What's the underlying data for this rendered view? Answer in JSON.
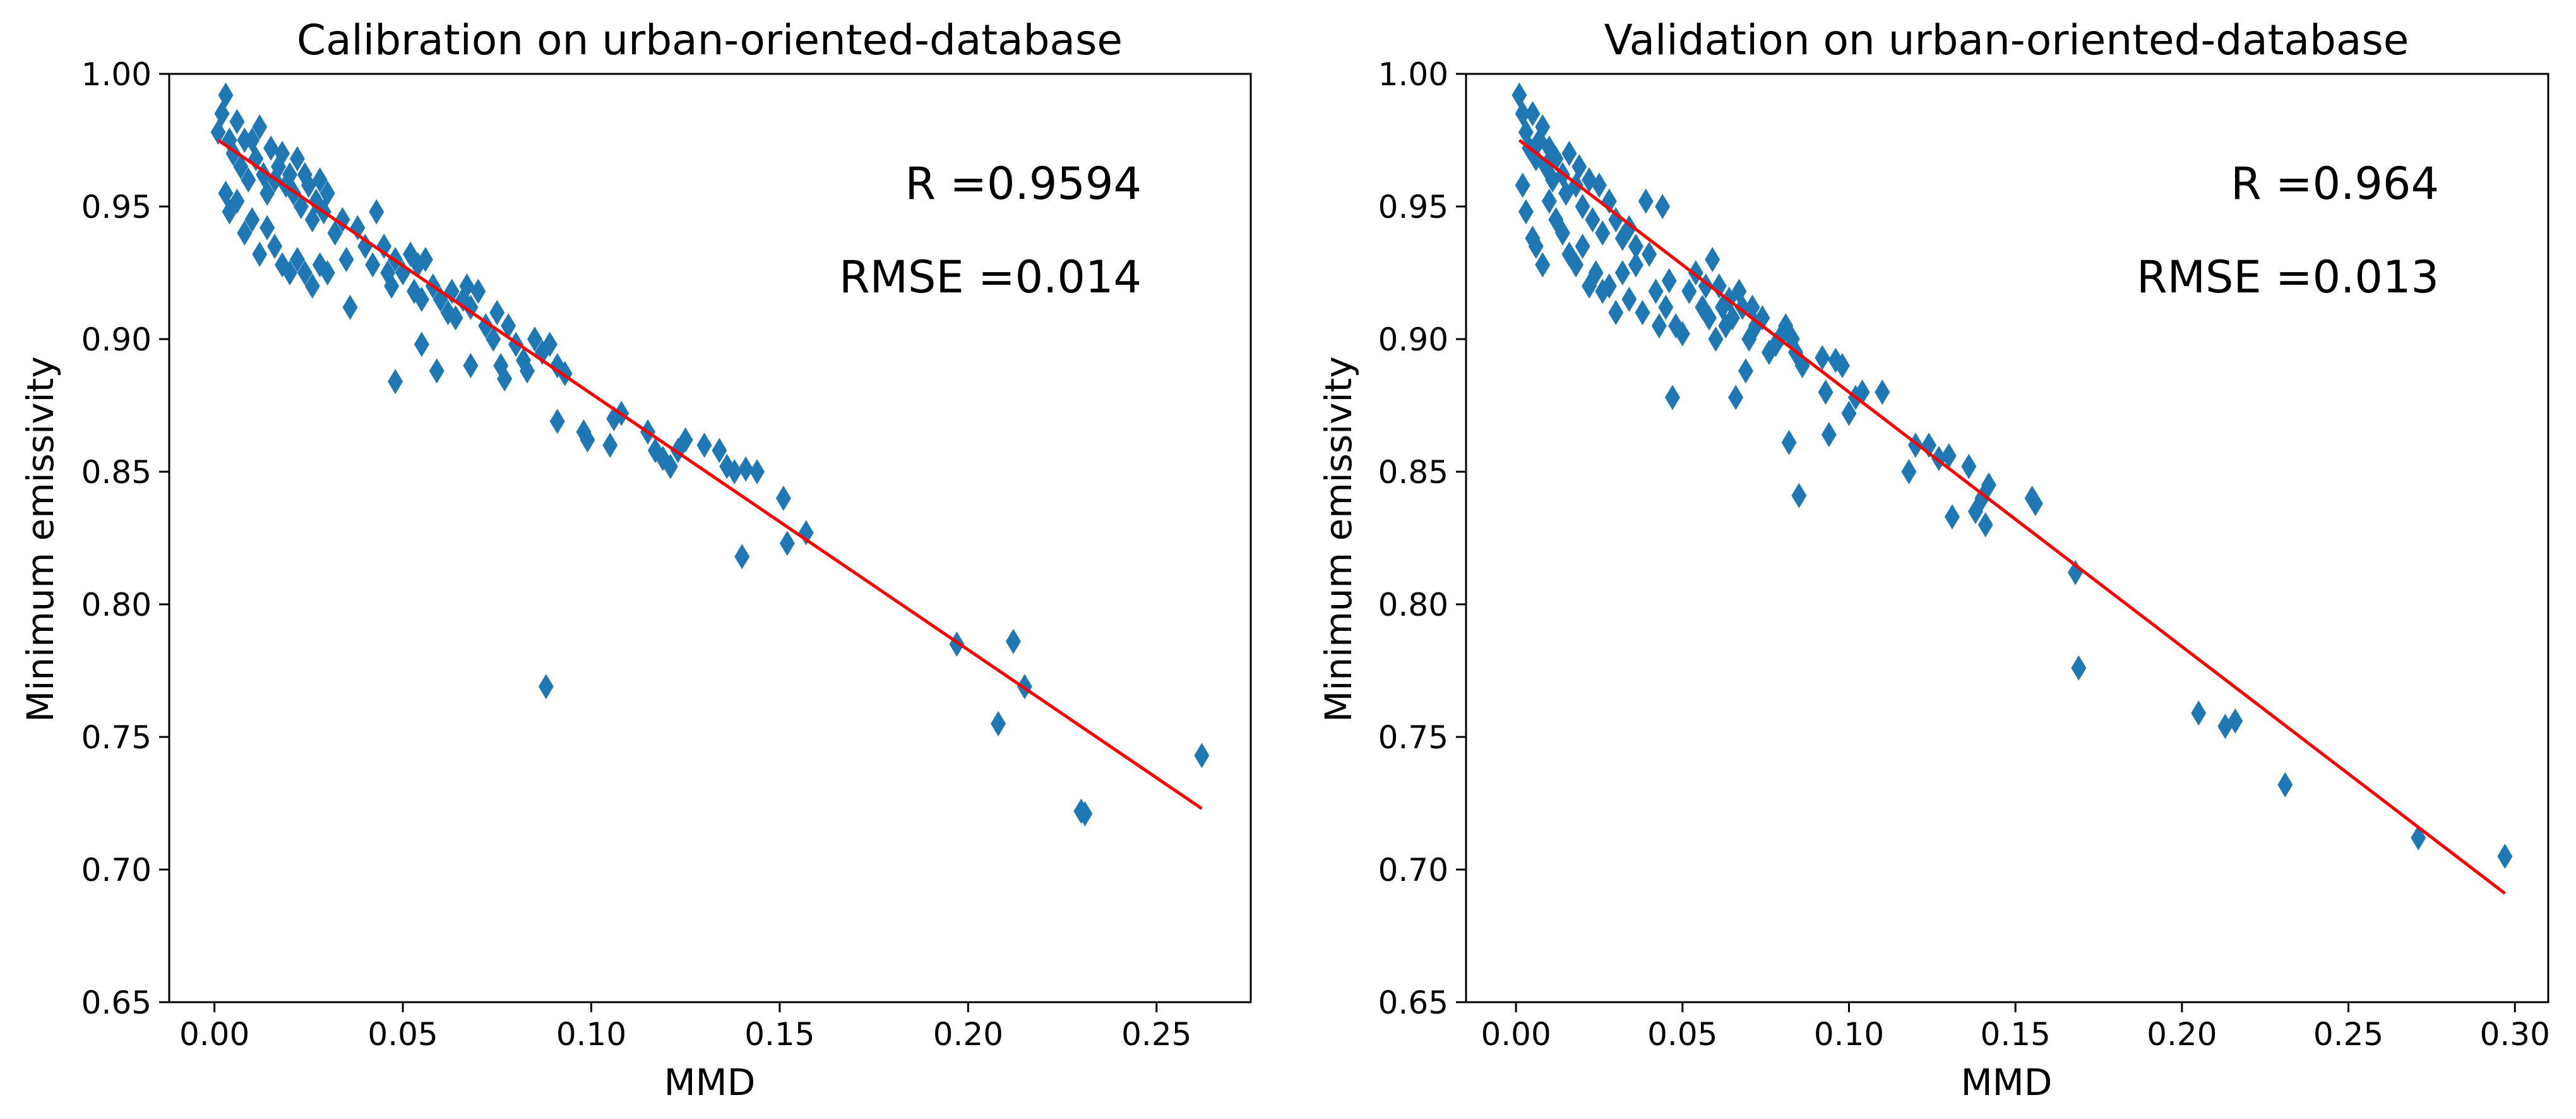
{
  "colors": {
    "marker": "#1f77b4",
    "fit_line": "#ff0000",
    "axes": "#000000",
    "background": "#ffffff"
  },
  "chart_data": [
    {
      "type": "scatter",
      "marker": "thin_diamond",
      "title": "Calibration on urban-oriented-database",
      "xlabel": "MMD",
      "ylabel": "Minimum emissivity",
      "xlim": [
        -0.012,
        0.275
      ],
      "ylim": [
        0.65,
        1.0
      ],
      "xticks": [
        "0.00",
        "0.05",
        "0.10",
        "0.15",
        "0.20",
        "0.25"
      ],
      "yticks": [
        "0.65",
        "0.70",
        "0.75",
        "0.80",
        "0.85",
        "0.90",
        "0.95",
        "1.00"
      ],
      "grid": false,
      "legend": "none",
      "annotations": [
        "R =0.9594",
        "RMSE =0.014"
      ],
      "fit_line": {
        "x": [
          0.001,
          0.262
        ],
        "y": [
          0.975,
          0.723
        ]
      },
      "points": [
        [
          0.001,
          0.978
        ],
        [
          0.002,
          0.985
        ],
        [
          0.003,
          0.992
        ],
        [
          0.004,
          0.975
        ],
        [
          0.005,
          0.97
        ],
        [
          0.006,
          0.982
        ],
        [
          0.007,
          0.965
        ],
        [
          0.008,
          0.975
        ],
        [
          0.009,
          0.96
        ],
        [
          0.01,
          0.975
        ],
        [
          0.011,
          0.968
        ],
        [
          0.012,
          0.98
        ],
        [
          0.013,
          0.962
        ],
        [
          0.014,
          0.955
        ],
        [
          0.015,
          0.972
        ],
        [
          0.016,
          0.96
        ],
        [
          0.017,
          0.965
        ],
        [
          0.018,
          0.97
        ],
        [
          0.019,
          0.958
        ],
        [
          0.02,
          0.962
        ],
        [
          0.021,
          0.955
        ],
        [
          0.022,
          0.968
        ],
        [
          0.023,
          0.95
        ],
        [
          0.024,
          0.962
        ],
        [
          0.025,
          0.958
        ],
        [
          0.026,
          0.945
        ],
        [
          0.027,
          0.952
        ],
        [
          0.028,
          0.96
        ],
        [
          0.029,
          0.948
        ],
        [
          0.03,
          0.955
        ],
        [
          0.032,
          0.94
        ],
        [
          0.034,
          0.945
        ],
        [
          0.003,
          0.955
        ],
        [
          0.004,
          0.948
        ],
        [
          0.006,
          0.952
        ],
        [
          0.008,
          0.94
        ],
        [
          0.01,
          0.945
        ],
        [
          0.012,
          0.932
        ],
        [
          0.014,
          0.942
        ],
        [
          0.016,
          0.935
        ],
        [
          0.018,
          0.928
        ],
        [
          0.02,
          0.925
        ],
        [
          0.022,
          0.93
        ],
        [
          0.024,
          0.925
        ],
        [
          0.026,
          0.92
        ],
        [
          0.028,
          0.928
        ],
        [
          0.03,
          0.925
        ],
        [
          0.035,
          0.93
        ],
        [
          0.036,
          0.912
        ],
        [
          0.038,
          0.942
        ],
        [
          0.04,
          0.935
        ],
        [
          0.042,
          0.928
        ],
        [
          0.043,
          0.948
        ],
        [
          0.045,
          0.935
        ],
        [
          0.046,
          0.925
        ],
        [
          0.047,
          0.92
        ],
        [
          0.048,
          0.93
        ],
        [
          0.05,
          0.925
        ],
        [
          0.052,
          0.932
        ],
        [
          0.053,
          0.918
        ],
        [
          0.054,
          0.928
        ],
        [
          0.055,
          0.915
        ],
        [
          0.056,
          0.93
        ],
        [
          0.058,
          0.92
        ],
        [
          0.06,
          0.915
        ],
        [
          0.062,
          0.91
        ],
        [
          0.063,
          0.918
        ],
        [
          0.064,
          0.908
        ],
        [
          0.066,
          0.915
        ],
        [
          0.067,
          0.92
        ],
        [
          0.068,
          0.912
        ],
        [
          0.07,
          0.918
        ],
        [
          0.072,
          0.905
        ],
        [
          0.074,
          0.9
        ],
        [
          0.075,
          0.91
        ],
        [
          0.076,
          0.89
        ],
        [
          0.077,
          0.885
        ],
        [
          0.078,
          0.905
        ],
        [
          0.08,
          0.898
        ],
        [
          0.082,
          0.892
        ],
        [
          0.083,
          0.888
        ],
        [
          0.085,
          0.9
        ],
        [
          0.087,
          0.895
        ],
        [
          0.089,
          0.898
        ],
        [
          0.091,
          0.89
        ],
        [
          0.093,
          0.887
        ],
        [
          0.048,
          0.884
        ],
        [
          0.055,
          0.898
        ],
        [
          0.059,
          0.888
        ],
        [
          0.068,
          0.89
        ],
        [
          0.088,
          0.769
        ],
        [
          0.091,
          0.869
        ],
        [
          0.098,
          0.865
        ],
        [
          0.099,
          0.862
        ],
        [
          0.105,
          0.86
        ],
        [
          0.106,
          0.87
        ],
        [
          0.108,
          0.872
        ],
        [
          0.115,
          0.865
        ],
        [
          0.117,
          0.858
        ],
        [
          0.119,
          0.855
        ],
        [
          0.121,
          0.852
        ],
        [
          0.123,
          0.858
        ],
        [
          0.125,
          0.862
        ],
        [
          0.13,
          0.86
        ],
        [
          0.134,
          0.858
        ],
        [
          0.136,
          0.852
        ],
        [
          0.138,
          0.85
        ],
        [
          0.14,
          0.818
        ],
        [
          0.141,
          0.851
        ],
        [
          0.144,
          0.85
        ],
        [
          0.151,
          0.84
        ],
        [
          0.152,
          0.823
        ],
        [
          0.157,
          0.827
        ],
        [
          0.197,
          0.785
        ],
        [
          0.208,
          0.755
        ],
        [
          0.212,
          0.786
        ],
        [
          0.215,
          0.769
        ],
        [
          0.23,
          0.722
        ],
        [
          0.231,
          0.721
        ],
        [
          0.262,
          0.743
        ]
      ]
    },
    {
      "type": "scatter",
      "marker": "thin_diamond",
      "title": "Validation on urban-oriented-database",
      "xlabel": "MMD",
      "ylabel": "Minimum emissivity",
      "xlim": [
        -0.015,
        0.31
      ],
      "ylim": [
        0.65,
        1.0
      ],
      "xticks": [
        "0.00",
        "0.05",
        "0.10",
        "0.15",
        "0.20",
        "0.25",
        "0.30"
      ],
      "yticks": [
        "0.65",
        "0.70",
        "0.75",
        "0.80",
        "0.85",
        "0.90",
        "0.95",
        "1.00"
      ],
      "grid": false,
      "legend": "none",
      "annotations": [
        "R =0.964",
        "RMSE =0.013"
      ],
      "fit_line": {
        "x": [
          0.001,
          0.297
        ],
        "y": [
          0.975,
          0.691
        ]
      },
      "points": [
        [
          0.001,
          0.992
        ],
        [
          0.002,
          0.985
        ],
        [
          0.003,
          0.978
        ],
        [
          0.004,
          0.972
        ],
        [
          0.005,
          0.985
        ],
        [
          0.006,
          0.968
        ],
        [
          0.007,
          0.975
        ],
        [
          0.008,
          0.98
        ],
        [
          0.009,
          0.965
        ],
        [
          0.01,
          0.972
        ],
        [
          0.011,
          0.96
        ],
        [
          0.012,
          0.968
        ],
        [
          0.014,
          0.962
        ],
        [
          0.015,
          0.955
        ],
        [
          0.016,
          0.97
        ],
        [
          0.018,
          0.958
        ],
        [
          0.019,
          0.965
        ],
        [
          0.02,
          0.95
        ],
        [
          0.022,
          0.96
        ],
        [
          0.023,
          0.945
        ],
        [
          0.025,
          0.958
        ],
        [
          0.026,
          0.94
        ],
        [
          0.028,
          0.952
        ],
        [
          0.03,
          0.945
        ],
        [
          0.032,
          0.938
        ],
        [
          0.034,
          0.942
        ],
        [
          0.036,
          0.935
        ],
        [
          0.002,
          0.958
        ],
        [
          0.003,
          0.948
        ],
        [
          0.005,
          0.938
        ],
        [
          0.006,
          0.935
        ],
        [
          0.008,
          0.928
        ],
        [
          0.01,
          0.952
        ],
        [
          0.012,
          0.945
        ],
        [
          0.014,
          0.94
        ],
        [
          0.016,
          0.932
        ],
        [
          0.018,
          0.928
        ],
        [
          0.02,
          0.935
        ],
        [
          0.022,
          0.92
        ],
        [
          0.024,
          0.925
        ],
        [
          0.026,
          0.918
        ],
        [
          0.028,
          0.92
        ],
        [
          0.03,
          0.91
        ],
        [
          0.032,
          0.925
        ],
        [
          0.034,
          0.915
        ],
        [
          0.036,
          0.928
        ],
        [
          0.038,
          0.91
        ],
        [
          0.039,
          0.952
        ],
        [
          0.04,
          0.932
        ],
        [
          0.042,
          0.918
        ],
        [
          0.043,
          0.905
        ],
        [
          0.044,
          0.95
        ],
        [
          0.045,
          0.912
        ],
        [
          0.046,
          0.922
        ],
        [
          0.047,
          0.878
        ],
        [
          0.048,
          0.905
        ],
        [
          0.05,
          0.902
        ],
        [
          0.052,
          0.918
        ],
        [
          0.054,
          0.925
        ],
        [
          0.056,
          0.912
        ],
        [
          0.057,
          0.92
        ],
        [
          0.058,
          0.908
        ],
        [
          0.059,
          0.93
        ],
        [
          0.06,
          0.9
        ],
        [
          0.061,
          0.92
        ],
        [
          0.062,
          0.912
        ],
        [
          0.063,
          0.905
        ],
        [
          0.064,
          0.915
        ],
        [
          0.065,
          0.908
        ],
        [
          0.066,
          0.878
        ],
        [
          0.067,
          0.918
        ],
        [
          0.068,
          0.912
        ],
        [
          0.069,
          0.888
        ],
        [
          0.07,
          0.9
        ],
        [
          0.071,
          0.912
        ],
        [
          0.072,
          0.905
        ],
        [
          0.074,
          0.908
        ],
        [
          0.076,
          0.895
        ],
        [
          0.078,
          0.898
        ],
        [
          0.08,
          0.902
        ],
        [
          0.081,
          0.905
        ],
        [
          0.082,
          0.861
        ],
        [
          0.083,
          0.9
        ],
        [
          0.084,
          0.895
        ],
        [
          0.085,
          0.841
        ],
        [
          0.086,
          0.89
        ],
        [
          0.092,
          0.893
        ],
        [
          0.093,
          0.88
        ],
        [
          0.094,
          0.864
        ],
        [
          0.096,
          0.892
        ],
        [
          0.098,
          0.89
        ],
        [
          0.1,
          0.872
        ],
        [
          0.102,
          0.878
        ],
        [
          0.104,
          0.88
        ],
        [
          0.11,
          0.88
        ],
        [
          0.118,
          0.85
        ],
        [
          0.12,
          0.86
        ],
        [
          0.124,
          0.86
        ],
        [
          0.127,
          0.855
        ],
        [
          0.13,
          0.856
        ],
        [
          0.131,
          0.833
        ],
        [
          0.136,
          0.852
        ],
        [
          0.138,
          0.835
        ],
        [
          0.14,
          0.84
        ],
        [
          0.141,
          0.83
        ],
        [
          0.142,
          0.845
        ],
        [
          0.155,
          0.84
        ],
        [
          0.156,
          0.838
        ],
        [
          0.168,
          0.812
        ],
        [
          0.169,
          0.776
        ],
        [
          0.205,
          0.759
        ],
        [
          0.213,
          0.754
        ],
        [
          0.216,
          0.756
        ],
        [
          0.231,
          0.732
        ],
        [
          0.271,
          0.712
        ],
        [
          0.297,
          0.705
        ]
      ]
    }
  ]
}
